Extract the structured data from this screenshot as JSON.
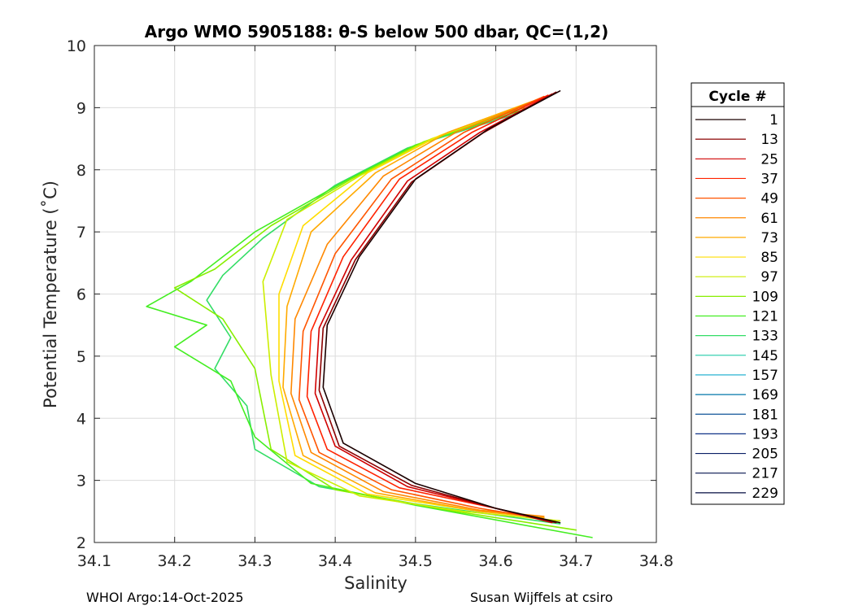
{
  "chart_data": {
    "type": "line",
    "title": "Argo WMO 5905188: θ-S below 500 dbar,  QC=(1,2)",
    "xlabel": "Salinity",
    "ylabel": "Potential Temperature (˚C)",
    "xlim": [
      34.1,
      34.8
    ],
    "ylim": [
      2,
      10
    ],
    "xticks": [
      34.1,
      34.2,
      34.3,
      34.4,
      34.5,
      34.6,
      34.7,
      34.8
    ],
    "yticks": [
      2,
      3,
      4,
      5,
      6,
      7,
      8,
      9,
      10
    ],
    "xtick_labels": [
      "34.1",
      "34.2",
      "34.3",
      "34.4",
      "34.5",
      "34.6",
      "34.7",
      "34.8"
    ],
    "ytick_labels": [
      "2",
      "3",
      "4",
      "5",
      "6",
      "7",
      "8",
      "9",
      "10"
    ],
    "grid": true,
    "legend_title": "Cycle #",
    "legend_position": "right-outside",
    "series": [
      {
        "name": "1",
        "color": "#1a0000",
        "points": [
          [
            34.68,
            9.27
          ],
          [
            34.59,
            8.65
          ],
          [
            34.5,
            7.85
          ],
          [
            34.43,
            6.6
          ],
          [
            34.39,
            5.5
          ],
          [
            34.385,
            4.5
          ],
          [
            34.41,
            3.6
          ],
          [
            34.5,
            2.95
          ],
          [
            34.6,
            2.55
          ],
          [
            34.68,
            2.32
          ]
        ]
      },
      {
        "name": "13",
        "color": "#8b0000",
        "points": [
          [
            34.675,
            9.25
          ],
          [
            34.585,
            8.6
          ],
          [
            34.495,
            7.8
          ],
          [
            34.425,
            6.55
          ],
          [
            34.385,
            5.45
          ],
          [
            34.38,
            4.45
          ],
          [
            34.405,
            3.55
          ],
          [
            34.495,
            2.92
          ],
          [
            34.6,
            2.55
          ],
          [
            34.675,
            2.32
          ]
        ]
      },
      {
        "name": "25",
        "color": "#d00000",
        "points": [
          [
            34.67,
            9.22
          ],
          [
            34.58,
            8.6
          ],
          [
            34.49,
            7.82
          ],
          [
            34.42,
            6.55
          ],
          [
            34.38,
            5.45
          ],
          [
            34.375,
            4.4
          ],
          [
            34.4,
            3.55
          ],
          [
            34.49,
            2.9
          ],
          [
            34.6,
            2.55
          ],
          [
            34.67,
            2.32
          ]
        ]
      },
      {
        "name": "37",
        "color": "#ff2200",
        "points": [
          [
            34.665,
            9.2
          ],
          [
            34.57,
            8.6
          ],
          [
            34.48,
            7.85
          ],
          [
            34.41,
            6.6
          ],
          [
            34.37,
            5.4
          ],
          [
            34.365,
            4.35
          ],
          [
            34.39,
            3.5
          ],
          [
            34.48,
            2.88
          ],
          [
            34.6,
            2.55
          ],
          [
            34.67,
            2.33
          ]
        ]
      },
      {
        "name": "49",
        "color": "#ff5500",
        "points": [
          [
            34.66,
            9.18
          ],
          [
            34.56,
            8.6
          ],
          [
            34.47,
            7.85
          ],
          [
            34.4,
            6.65
          ],
          [
            34.36,
            5.4
          ],
          [
            34.355,
            4.3
          ],
          [
            34.38,
            3.45
          ],
          [
            34.47,
            2.85
          ],
          [
            34.58,
            2.55
          ],
          [
            34.66,
            2.38
          ]
        ]
      },
      {
        "name": "61",
        "color": "#ff8800",
        "points": [
          [
            34.655,
            9.15
          ],
          [
            34.55,
            8.6
          ],
          [
            34.46,
            7.9
          ],
          [
            34.39,
            6.8
          ],
          [
            34.35,
            5.6
          ],
          [
            34.345,
            4.4
          ],
          [
            34.37,
            3.45
          ],
          [
            34.46,
            2.82
          ],
          [
            34.58,
            2.52
          ],
          [
            34.66,
            2.42
          ]
        ]
      },
      {
        "name": "73",
        "color": "#ffaa00",
        "points": [
          [
            34.65,
            9.12
          ],
          [
            34.54,
            8.6
          ],
          [
            34.45,
            7.95
          ],
          [
            34.37,
            7.0
          ],
          [
            34.34,
            5.8
          ],
          [
            34.335,
            4.5
          ],
          [
            34.36,
            3.4
          ],
          [
            34.45,
            2.8
          ],
          [
            34.58,
            2.5
          ],
          [
            34.66,
            2.4
          ]
        ]
      },
      {
        "name": "85",
        "color": "#ffdd00",
        "points": [
          [
            34.645,
            9.1
          ],
          [
            34.53,
            8.55
          ],
          [
            34.44,
            7.95
          ],
          [
            34.36,
            7.1
          ],
          [
            34.33,
            6.0
          ],
          [
            34.33,
            4.6
          ],
          [
            34.35,
            3.4
          ],
          [
            34.44,
            2.78
          ],
          [
            34.57,
            2.52
          ],
          [
            34.66,
            2.4
          ]
        ]
      },
      {
        "name": "97",
        "color": "#ccee00",
        "points": [
          [
            34.64,
            9.05
          ],
          [
            34.52,
            8.5
          ],
          [
            34.43,
            7.9
          ],
          [
            34.34,
            7.2
          ],
          [
            34.31,
            6.2
          ],
          [
            34.32,
            4.7
          ],
          [
            34.34,
            3.3
          ],
          [
            34.43,
            2.75
          ],
          [
            34.56,
            2.5
          ],
          [
            34.68,
            2.35
          ]
        ]
      },
      {
        "name": "109",
        "color": "#88ee00",
        "points": [
          [
            34.635,
            9.0
          ],
          [
            34.51,
            8.45
          ],
          [
            34.42,
            7.85
          ],
          [
            34.32,
            7.1
          ],
          [
            34.25,
            6.4
          ],
          [
            34.2,
            6.1
          ],
          [
            34.26,
            5.6
          ],
          [
            34.3,
            4.8
          ],
          [
            34.32,
            3.5
          ],
          [
            34.4,
            2.85
          ],
          [
            34.55,
            2.5
          ],
          [
            34.7,
            2.2
          ]
        ]
      },
      {
        "name": "121",
        "color": "#44ee22",
        "points": [
          [
            34.63,
            8.95
          ],
          [
            34.5,
            8.4
          ],
          [
            34.41,
            7.8
          ],
          [
            34.3,
            7.0
          ],
          [
            34.22,
            6.2
          ],
          [
            34.165,
            5.8
          ],
          [
            34.24,
            5.5
          ],
          [
            34.2,
            5.15
          ],
          [
            34.27,
            4.6
          ],
          [
            34.3,
            3.7
          ],
          [
            34.37,
            2.95
          ],
          [
            34.5,
            2.6
          ],
          [
            34.72,
            2.08
          ]
        ]
      },
      {
        "name": "133",
        "color": "#33dd66",
        "points": [
          [
            34.625,
            8.9
          ],
          [
            34.49,
            8.35
          ],
          [
            34.4,
            7.75
          ],
          [
            34.31,
            6.9
          ],
          [
            34.26,
            6.3
          ],
          [
            34.24,
            5.9
          ],
          [
            34.27,
            5.3
          ],
          [
            34.25,
            4.8
          ],
          [
            34.29,
            4.2
          ],
          [
            34.3,
            3.5
          ],
          [
            34.38,
            2.9
          ],
          [
            34.5,
            2.62
          ],
          [
            34.68,
            2.3
          ]
        ]
      },
      {
        "name": "145",
        "color": "#22ccaa",
        "points": []
      },
      {
        "name": "157",
        "color": "#11aacc",
        "points": []
      },
      {
        "name": "169",
        "color": "#0077aa",
        "points": []
      },
      {
        "name": "181",
        "color": "#115599",
        "points": []
      },
      {
        "name": "193",
        "color": "#113388",
        "points": []
      },
      {
        "name": "205",
        "color": "#0a1f66",
        "points": []
      },
      {
        "name": "217",
        "color": "#061550",
        "points": []
      },
      {
        "name": "229",
        "color": "#050d40",
        "points": []
      }
    ]
  },
  "footer": {
    "left": "WHOI Argo:14-Oct-2025",
    "right": "Susan Wijffels at csiro"
  }
}
